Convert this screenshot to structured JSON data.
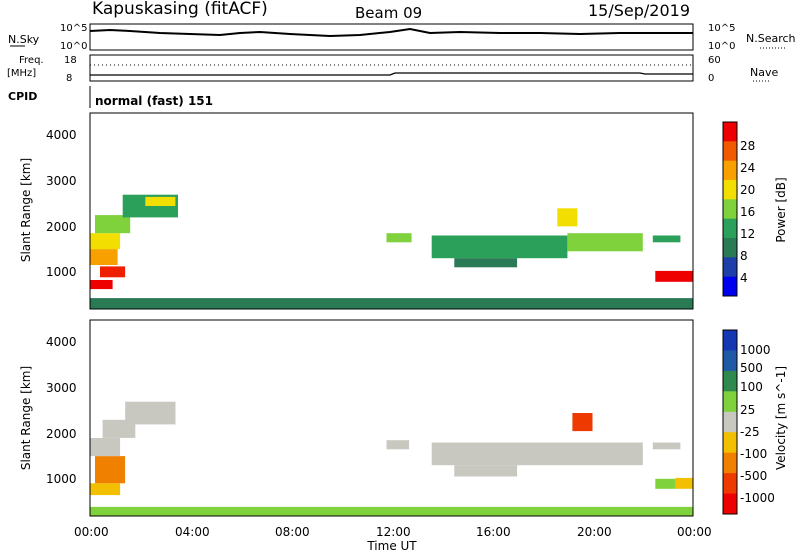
{
  "header": {
    "station": "Kapuskasing (fitACF)",
    "beam": "Beam 09",
    "date": "15/Sep/2019"
  },
  "panels": {
    "nsky": {
      "label": "N.Sky",
      "right_label": "N.Search",
      "ticks": [
        "10^5",
        "10^0"
      ],
      "right_ticks": [
        "10^5",
        "10^0"
      ]
    },
    "freq": {
      "label_line1": "Freq.",
      "label_line2": "[MHz]",
      "ticks": [
        "18",
        "8"
      ],
      "right_label": "Nave",
      "right_ticks": [
        "60",
        "0"
      ]
    },
    "cpid": {
      "label": "CPID",
      "value": "normal (fast) 151"
    }
  },
  "x_axis": {
    "label": "Time UT",
    "ticks": [
      "00:00",
      "04:00",
      "08:00",
      "12:00",
      "16:00",
      "20:00",
      "00:00"
    ]
  },
  "power_panel": {
    "ylabel": "Slant Range [km]",
    "yticks": [
      "4000",
      "3000",
      "2000",
      "1000"
    ],
    "colorbar_label": "Power [dB]",
    "colorbar_ticks": [
      "28",
      "24",
      "20",
      "16",
      "12",
      "8",
      "4"
    ],
    "colorbar_colors": [
      "#ee0000",
      "#f05a00",
      "#f7a000",
      "#f2de00",
      "#7fd23c",
      "#2aa05a",
      "#2a7a55",
      "#1e3ea8",
      "#0000f0"
    ]
  },
  "velocity_panel": {
    "ylabel": "Slant Range [km]",
    "yticks": [
      "4000",
      "3000",
      "2000",
      "1000"
    ],
    "colorbar_label": "Velocity [m s^-1]",
    "colorbar_ticks": [
      "1000",
      "500",
      "100",
      "25",
      "-25",
      "-100",
      "-500",
      "-1000"
    ],
    "colorbar_colors": [
      "#1438b4",
      "#1f5aa6",
      "#2e8a4c",
      "#7fd23c",
      "#c8c8c0",
      "#f2c000",
      "#f08000",
      "#ee3a00",
      "#ee0000"
    ]
  },
  "chart_data": {
    "type": "heatmap",
    "x_range_hours": [
      0,
      24
    ],
    "y_range_km": [
      180,
      4500
    ],
    "power_regions": [
      {
        "t0": 0.0,
        "t1": 0.9,
        "r0": 620,
        "r1": 820,
        "color": "#ee0000"
      },
      {
        "t0": 0.4,
        "t1": 1.4,
        "r0": 880,
        "r1": 1120,
        "color": "#ee2000"
      },
      {
        "t0": 0.0,
        "t1": 1.1,
        "r0": 1150,
        "r1": 1500,
        "color": "#f7a000"
      },
      {
        "t0": 0.0,
        "t1": 1.2,
        "r0": 1500,
        "r1": 1850,
        "color": "#f2de00"
      },
      {
        "t0": 0.2,
        "t1": 1.6,
        "r0": 1850,
        "r1": 2250,
        "color": "#7fd23c"
      },
      {
        "t0": 1.3,
        "t1": 3.5,
        "r0": 2200,
        "r1": 2700,
        "color": "#2aa05a"
      },
      {
        "t0": 2.2,
        "t1": 3.4,
        "r0": 2450,
        "r1": 2650,
        "color": "#f2de00"
      },
      {
        "t0": 11.8,
        "t1": 12.8,
        "r0": 1650,
        "r1": 1850,
        "color": "#7fd23c"
      },
      {
        "t0": 13.6,
        "t1": 19.0,
        "r0": 1300,
        "r1": 1800,
        "color": "#2aa05a"
      },
      {
        "t0": 14.5,
        "t1": 17.0,
        "r0": 1100,
        "r1": 1300,
        "color": "#2a7a55"
      },
      {
        "t0": 19.0,
        "t1": 22.0,
        "r0": 1450,
        "r1": 1850,
        "color": "#7fd23c"
      },
      {
        "t0": 18.6,
        "t1": 19.4,
        "r0": 2000,
        "r1": 2400,
        "color": "#f2de00"
      },
      {
        "t0": 22.4,
        "t1": 23.5,
        "r0": 1650,
        "r1": 1800,
        "color": "#2aa05a"
      },
      {
        "t0": 22.5,
        "t1": 24.0,
        "r0": 780,
        "r1": 1020,
        "color": "#ee0000"
      },
      {
        "t0": 0.0,
        "t1": 24.0,
        "r0": 180,
        "r1": 420,
        "color": "#2a7a55"
      }
    ],
    "velocity_regions": [
      {
        "t0": 0.0,
        "t1": 1.2,
        "r0": 640,
        "r1": 900,
        "color": "#f2c000"
      },
      {
        "t0": 0.2,
        "t1": 1.4,
        "r0": 900,
        "r1": 1500,
        "color": "#f08000"
      },
      {
        "t0": 0.0,
        "t1": 1.2,
        "r0": 1500,
        "r1": 1900,
        "color": "#c8c8c0"
      },
      {
        "t0": 0.5,
        "t1": 1.8,
        "r0": 1900,
        "r1": 2300,
        "color": "#c8c8c0"
      },
      {
        "t0": 1.4,
        "t1": 3.4,
        "r0": 2200,
        "r1": 2700,
        "color": "#c8c8c0"
      },
      {
        "t0": 11.8,
        "t1": 12.7,
        "r0": 1650,
        "r1": 1850,
        "color": "#c8c8c0"
      },
      {
        "t0": 13.6,
        "t1": 22.0,
        "r0": 1300,
        "r1": 1800,
        "color": "#c8c8c0"
      },
      {
        "t0": 14.5,
        "t1": 17.0,
        "r0": 1050,
        "r1": 1300,
        "color": "#c8c8c0"
      },
      {
        "t0": 19.2,
        "t1": 20.0,
        "r0": 2050,
        "r1": 2450,
        "color": "#ee3a00"
      },
      {
        "t0": 22.4,
        "t1": 23.5,
        "r0": 1650,
        "r1": 1800,
        "color": "#c8c8c0"
      },
      {
        "t0": 22.5,
        "t1": 23.3,
        "r0": 780,
        "r1": 1000,
        "color": "#7fd23c"
      },
      {
        "t0": 23.3,
        "t1": 24.0,
        "r0": 780,
        "r1": 1020,
        "color": "#f2c000"
      },
      {
        "t0": 0.0,
        "t1": 24.0,
        "r0": 180,
        "r1": 380,
        "color": "#7fd23c"
      }
    ]
  }
}
